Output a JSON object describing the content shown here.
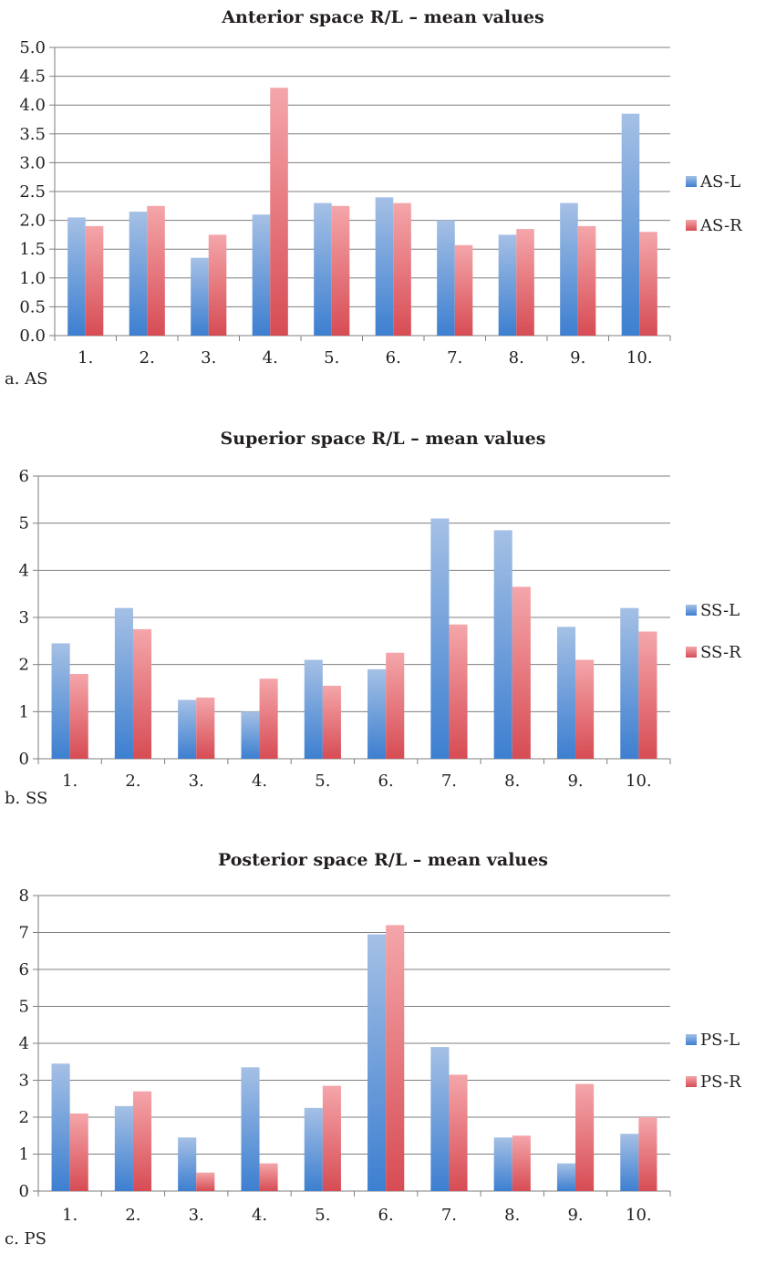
{
  "chart_data": [
    {
      "type": "bar",
      "title": "Anterior space R/L – mean values",
      "caption": "a.  AS",
      "categories": [
        "1.",
        "2.",
        "3.",
        "4.",
        "5.",
        "6.",
        "7.",
        "8.",
        "9.",
        "10."
      ],
      "series": [
        {
          "name": "AS-L",
          "values": [
            2.05,
            2.15,
            1.35,
            2.1,
            2.3,
            2.4,
            2.0,
            1.75,
            2.3,
            3.85
          ]
        },
        {
          "name": "AS-R",
          "values": [
            1.9,
            2.25,
            1.75,
            4.3,
            2.25,
            2.3,
            1.57,
            1.85,
            1.9,
            1.8
          ]
        }
      ],
      "ylim": [
        0,
        5
      ],
      "yticks": [
        "0.0",
        "0.5",
        "1.0",
        "1.5",
        "2.0",
        "2.5",
        "3.0",
        "3.5",
        "4.0",
        "4.5",
        "5.0"
      ],
      "grid": true,
      "legend": "right"
    },
    {
      "type": "bar",
      "title": "Superior space R/L – mean values",
      "caption": "b.  SS",
      "categories": [
        "1.",
        "2.",
        "3.",
        "4.",
        "5.",
        "6.",
        "7.",
        "8.",
        "9.",
        "10."
      ],
      "series": [
        {
          "name": "SS-L",
          "values": [
            2.45,
            3.2,
            1.25,
            1.0,
            2.1,
            1.9,
            5.1,
            4.85,
            2.8,
            3.2
          ]
        },
        {
          "name": "SS-R",
          "values": [
            1.8,
            2.75,
            1.3,
            1.7,
            1.55,
            2.25,
            2.85,
            3.65,
            2.1,
            2.7
          ]
        }
      ],
      "ylim": [
        0,
        6
      ],
      "yticks": [
        "0",
        "1",
        "2",
        "3",
        "4",
        "5",
        "6"
      ],
      "grid": true,
      "legend": "right"
    },
    {
      "type": "bar",
      "title": "Posterior space R/L – mean values",
      "caption": "c.  PS",
      "categories": [
        "1.",
        "2.",
        "3.",
        "4.",
        "5.",
        "6.",
        "7.",
        "8.",
        "9.",
        "10."
      ],
      "series": [
        {
          "name": "PS-L",
          "values": [
            3.45,
            2.3,
            1.45,
            3.35,
            2.25,
            6.95,
            3.9,
            1.45,
            0.75,
            1.55
          ]
        },
        {
          "name": "PS-R",
          "values": [
            2.1,
            2.7,
            0.5,
            0.75,
            2.85,
            7.2,
            3.15,
            1.5,
            2.9,
            2.0
          ]
        }
      ],
      "ylim": [
        0,
        8
      ],
      "yticks": [
        "0",
        "1",
        "2",
        "3",
        "4",
        "5",
        "6",
        "7",
        "8"
      ],
      "grid": true,
      "legend": "right"
    }
  ],
  "colors": {
    "series_l_top": "#a5c0e5",
    "series_l_bottom": "#3d7fd0",
    "series_r_top": "#f4a6aa",
    "series_r_bottom": "#d74c54",
    "grid": "#7f7f7f",
    "axis": "#7f7f7f"
  }
}
